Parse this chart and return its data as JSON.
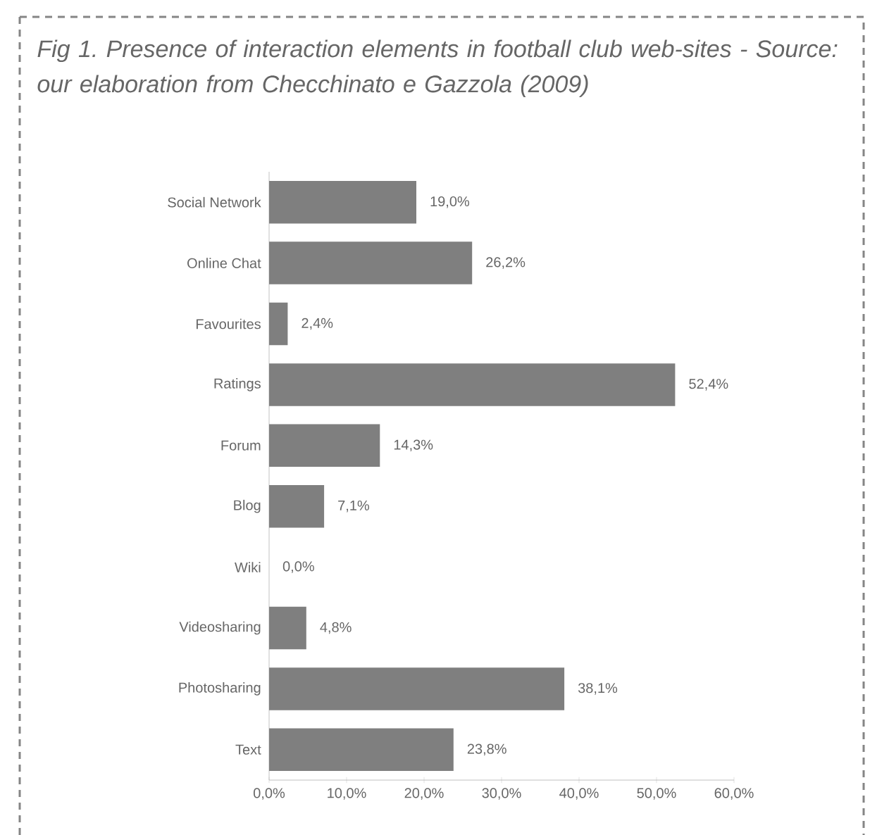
{
  "chart_data": {
    "type": "bar",
    "orientation": "horizontal",
    "title": "Fig 1. Presence of interaction elements in football club web-sites - Source: our elaboration from Checchinato e Gazzola (2009)",
    "categories": [
      "Social Network",
      "Online Chat",
      "Favourites",
      "Ratings",
      "Forum",
      "Blog",
      "Wiki",
      "Videosharing",
      "Photosharing",
      "Text"
    ],
    "values": [
      19.0,
      26.2,
      2.4,
      52.4,
      14.3,
      7.1,
      0.0,
      4.8,
      38.1,
      23.8
    ],
    "value_labels": [
      "19,0%",
      "26,2%",
      "2,4%",
      "52,4%",
      "14,3%",
      "7,1%",
      "0,0%",
      "4,8%",
      "38,1%",
      "23,8%"
    ],
    "color": "#7f7f7f",
    "xlim": [
      0,
      60
    ],
    "xticks": [
      {
        "value": 0,
        "label": "0,0%"
      },
      {
        "value": 10,
        "label": "10,0%"
      },
      {
        "value": 20,
        "label": "20,0%"
      },
      {
        "value": 30,
        "label": "30,0%"
      },
      {
        "value": 40,
        "label": "40,0%"
      },
      {
        "value": 50,
        "label": "50,0%"
      },
      {
        "value": 60,
        "label": "60,0%"
      }
    ],
    "grid": false
  }
}
